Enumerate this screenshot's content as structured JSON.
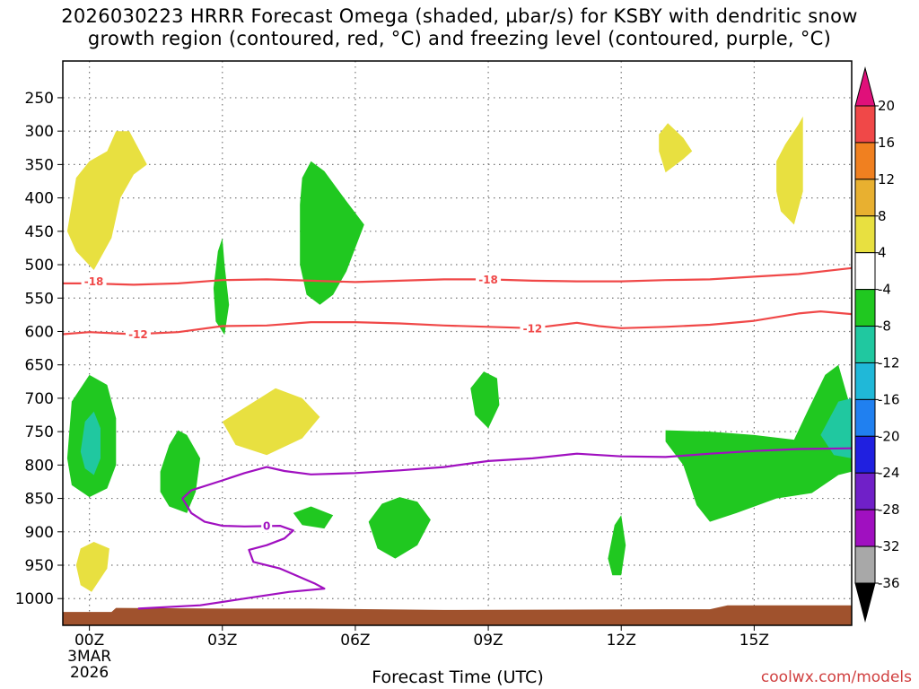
{
  "title_line1": "2026030223 HRRR Forecast Omega (shaded, µbar/s) for KSBY with dendritic snow",
  "title_line2": "growth region (contoured, red, °C) and freezing level (contoured, purple, °C)",
  "credit": "coolwx.com/models",
  "chart_data": {
    "type": "cross-section",
    "title": "2026030223 HRRR Forecast Omega (shaded, µbar/s) for KSBY with dendritic snow growth region (contoured, red, °C) and freezing level (contoured, purple, °C)",
    "xlabel": "Forecast Time (UTC)",
    "ylabel": "",
    "xlim": [
      -0.6,
      17.2
    ],
    "ylim": [
      1040,
      195
    ],
    "x_ticks": [
      {
        "value": 0,
        "label": "00Z",
        "sub1": "3MAR",
        "sub2": "2026"
      },
      {
        "value": 3,
        "label": "03Z"
      },
      {
        "value": 6,
        "label": "06Z"
      },
      {
        "value": 9,
        "label": "09Z"
      },
      {
        "value": 12,
        "label": "12Z"
      },
      {
        "value": 15,
        "label": "15Z"
      }
    ],
    "y_ticks": [
      250,
      300,
      350,
      400,
      450,
      500,
      550,
      600,
      650,
      700,
      750,
      800,
      850,
      900,
      950,
      1000
    ],
    "colorbar": {
      "labels": [
        "20",
        "16",
        "12",
        "8",
        "4",
        "-4",
        "-8",
        "-12",
        "-16",
        "-20",
        "-24",
        "-28",
        "-32",
        "-36"
      ],
      "top_arrow_color": "#e0107a",
      "bottom_arrow_color": "#000000",
      "bins": [
        {
          "from": 20,
          "to": 16,
          "color": "#f04848"
        },
        {
          "from": 16,
          "to": 12,
          "color": "#f08020"
        },
        {
          "from": 12,
          "to": 8,
          "color": "#e8b030"
        },
        {
          "from": 8,
          "to": 4,
          "color": "#e8e040"
        },
        {
          "from": 4,
          "to": -4,
          "color": "#ffffff"
        },
        {
          "from": -4,
          "to": -8,
          "color": "#20c820"
        },
        {
          "from": -8,
          "to": -12,
          "color": "#20c8a0"
        },
        {
          "from": -12,
          "to": -16,
          "color": "#20b8d8"
        },
        {
          "from": -16,
          "to": -20,
          "color": "#2080f0"
        },
        {
          "from": -20,
          "to": -24,
          "color": "#2020e0"
        },
        {
          "from": -24,
          "to": -28,
          "color": "#7020c8"
        },
        {
          "from": -28,
          "to": -32,
          "color": "#a010c0"
        },
        {
          "from": -32,
          "to": -36,
          "color": "#a8a8a8"
        }
      ]
    },
    "shaded_regions": [
      {
        "omega_range": "4 to 8",
        "color": "#e8e040",
        "points": [
          [
            -0.5,
            450
          ],
          [
            -0.3,
            370
          ],
          [
            0.0,
            345
          ],
          [
            0.4,
            330
          ],
          [
            0.6,
            300
          ],
          [
            0.9,
            300
          ],
          [
            1.3,
            350
          ],
          [
            1.0,
            365
          ],
          [
            0.7,
            400
          ],
          [
            0.5,
            460
          ],
          [
            0.1,
            508
          ],
          [
            -0.3,
            480
          ]
        ]
      },
      {
        "omega_range": "4 to 8",
        "color": "#e8e040",
        "points": [
          [
            -0.3,
            950
          ],
          [
            -0.2,
            925
          ],
          [
            0.1,
            915
          ],
          [
            0.45,
            925
          ],
          [
            0.4,
            955
          ],
          [
            0.05,
            990
          ],
          [
            -0.2,
            980
          ]
        ]
      },
      {
        "omega_range": "4 to 8",
        "color": "#e8e040",
        "points": [
          [
            3.0,
            735
          ],
          [
            3.6,
            710
          ],
          [
            4.2,
            685
          ],
          [
            4.8,
            700
          ],
          [
            5.2,
            728
          ],
          [
            4.8,
            760
          ],
          [
            4.0,
            785
          ],
          [
            3.3,
            770
          ]
        ]
      },
      {
        "omega_range": "4 to 8",
        "color": "#e8e040",
        "points": [
          [
            12.85,
            305
          ],
          [
            13.05,
            288
          ],
          [
            13.4,
            310
          ],
          [
            13.6,
            330
          ],
          [
            13.4,
            342
          ],
          [
            13.0,
            362
          ],
          [
            12.85,
            330
          ]
        ]
      },
      {
        "omega_range": "4 to 8",
        "color": "#e8e040",
        "points": [
          [
            15.5,
            345
          ],
          [
            15.7,
            320
          ],
          [
            16.0,
            290
          ],
          [
            16.1,
            278
          ],
          [
            16.1,
            330
          ],
          [
            16.1,
            390
          ],
          [
            15.9,
            440
          ],
          [
            15.6,
            420
          ],
          [
            15.5,
            390
          ]
        ]
      },
      {
        "omega_range": "-4 to -8",
        "color": "#20c820",
        "points": [
          [
            -0.5,
            790
          ],
          [
            -0.4,
            705
          ],
          [
            0.0,
            665
          ],
          [
            0.4,
            680
          ],
          [
            0.6,
            730
          ],
          [
            0.6,
            800
          ],
          [
            0.4,
            835
          ],
          [
            0.0,
            848
          ],
          [
            -0.4,
            830
          ]
        ]
      },
      {
        "omega_range": "-8 to -12",
        "color": "#20c8a0",
        "points": [
          [
            -0.2,
            780
          ],
          [
            -0.1,
            735
          ],
          [
            0.1,
            720
          ],
          [
            0.25,
            745
          ],
          [
            0.25,
            790
          ],
          [
            0.1,
            815
          ],
          [
            -0.1,
            805
          ]
        ]
      },
      {
        "omega_range": "-4 to -8",
        "color": "#20c820",
        "points": [
          [
            1.6,
            810
          ],
          [
            1.8,
            770
          ],
          [
            2.0,
            748
          ],
          [
            2.2,
            755
          ],
          [
            2.5,
            790
          ],
          [
            2.4,
            840
          ],
          [
            2.2,
            872
          ],
          [
            1.8,
            862
          ],
          [
            1.6,
            840
          ]
        ]
      },
      {
        "omega_range": "-4 to -8",
        "color": "#20c820",
        "points": [
          [
            2.8,
            535
          ],
          [
            2.9,
            480
          ],
          [
            3.0,
            460
          ],
          [
            3.05,
            500
          ],
          [
            3.15,
            560
          ],
          [
            3.05,
            605
          ],
          [
            2.85,
            585
          ]
        ]
      },
      {
        "omega_range": "-4 to -8",
        "color": "#20c820",
        "points": [
          [
            4.75,
            410
          ],
          [
            4.8,
            370
          ],
          [
            5.0,
            345
          ],
          [
            5.3,
            360
          ],
          [
            5.8,
            405
          ],
          [
            6.2,
            440
          ],
          [
            6.0,
            475
          ],
          [
            5.8,
            510
          ],
          [
            5.5,
            545
          ],
          [
            5.2,
            560
          ],
          [
            4.9,
            545
          ],
          [
            4.75,
            500
          ]
        ]
      },
      {
        "omega_range": "-4 to -8",
        "color": "#20c820",
        "points": [
          [
            4.6,
            872
          ],
          [
            5.0,
            862
          ],
          [
            5.5,
            875
          ],
          [
            5.3,
            895
          ],
          [
            4.8,
            890
          ]
        ]
      },
      {
        "omega_range": "-4 to -8",
        "color": "#20c820",
        "points": [
          [
            6.3,
            885
          ],
          [
            6.6,
            858
          ],
          [
            7.0,
            848
          ],
          [
            7.4,
            855
          ],
          [
            7.7,
            882
          ],
          [
            7.4,
            920
          ],
          [
            6.9,
            940
          ],
          [
            6.5,
            925
          ]
        ]
      },
      {
        "omega_range": "-4 to -8",
        "color": "#20c820",
        "points": [
          [
            8.6,
            685
          ],
          [
            8.9,
            660
          ],
          [
            9.2,
            670
          ],
          [
            9.25,
            710
          ],
          [
            9.0,
            745
          ],
          [
            8.7,
            725
          ]
        ]
      },
      {
        "omega_range": "-4 to -8",
        "color": "#20c820",
        "points": [
          [
            11.7,
            940
          ],
          [
            11.85,
            890
          ],
          [
            12.0,
            875
          ],
          [
            12.1,
            920
          ],
          [
            12.0,
            965
          ],
          [
            11.8,
            965
          ]
        ]
      },
      {
        "omega_range": "-4 to -8",
        "color": "#20c820",
        "points": [
          [
            13.0,
            748
          ],
          [
            13.0,
            765
          ],
          [
            13.4,
            800
          ],
          [
            13.7,
            860
          ],
          [
            14.0,
            885
          ],
          [
            14.6,
            872
          ],
          [
            15.5,
            850
          ],
          [
            16.3,
            842
          ],
          [
            16.9,
            815
          ],
          [
            17.2,
            810
          ],
          [
            17.2,
            720
          ],
          [
            16.9,
            650
          ],
          [
            16.6,
            665
          ],
          [
            16.2,
            720
          ],
          [
            15.9,
            762
          ],
          [
            15.0,
            755
          ],
          [
            14.0,
            750
          ]
        ]
      },
      {
        "omega_range": "-8 to -12",
        "color": "#20c8a0",
        "points": [
          [
            16.5,
            755
          ],
          [
            16.9,
            705
          ],
          [
            17.2,
            700
          ],
          [
            17.2,
            790
          ],
          [
            16.8,
            785
          ]
        ]
      }
    ],
    "contours": [
      {
        "name": "dgz-minus18",
        "color": "#f04848",
        "label": "-18",
        "label_at": [
          [
            0.1,
            525
          ],
          [
            9.0,
            522
          ]
        ],
        "points": [
          [
            -0.6,
            528
          ],
          [
            0.0,
            528
          ],
          [
            1.0,
            530
          ],
          [
            2.0,
            528
          ],
          [
            3.0,
            523
          ],
          [
            4.0,
            522
          ],
          [
            5.0,
            524
          ],
          [
            6.0,
            526
          ],
          [
            7.0,
            524
          ],
          [
            8.0,
            522
          ],
          [
            9.0,
            522
          ],
          [
            10.0,
            524
          ],
          [
            11.0,
            525
          ],
          [
            12.0,
            525
          ],
          [
            13.0,
            523
          ],
          [
            14.0,
            522
          ],
          [
            15.0,
            518
          ],
          [
            16.0,
            514
          ],
          [
            17.2,
            505
          ]
        ]
      },
      {
        "name": "dgz-minus12",
        "color": "#f04848",
        "label": "-12",
        "label_at": [
          [
            1.1,
            604
          ],
          [
            10.0,
            595
          ]
        ],
        "points": [
          [
            -0.6,
            604
          ],
          [
            0.0,
            601
          ],
          [
            1.0,
            604
          ],
          [
            2.0,
            601
          ],
          [
            3.0,
            592
          ],
          [
            4.0,
            591
          ],
          [
            5.0,
            586
          ],
          [
            6.0,
            586
          ],
          [
            7.0,
            588
          ],
          [
            8.0,
            591
          ],
          [
            9.0,
            593
          ],
          [
            10.0,
            595
          ],
          [
            11.0,
            587
          ],
          [
            11.5,
            592
          ],
          [
            12.0,
            595
          ],
          [
            13.0,
            593
          ],
          [
            14.0,
            590
          ],
          [
            15.0,
            584
          ],
          [
            16.0,
            573
          ],
          [
            16.5,
            570
          ],
          [
            17.2,
            574
          ]
        ]
      },
      {
        "name": "freezing-level",
        "color": "#a010c0",
        "label": "0",
        "label_at": [
          [
            4.0,
            891
          ]
        ],
        "points": [
          [
            17.2,
            775
          ],
          [
            16.0,
            776
          ],
          [
            15.0,
            779
          ],
          [
            14.0,
            783
          ],
          [
            13.0,
            788
          ],
          [
            12.0,
            787
          ],
          [
            11.5,
            785
          ],
          [
            11.0,
            783
          ],
          [
            10.0,
            790
          ],
          [
            9.0,
            794
          ],
          [
            8.0,
            803
          ],
          [
            7.0,
            808
          ],
          [
            6.0,
            812
          ],
          [
            5.0,
            814
          ],
          [
            4.4,
            809
          ],
          [
            4.0,
            803
          ],
          [
            3.5,
            812
          ],
          [
            3.0,
            823
          ],
          [
            2.3,
            838
          ],
          [
            2.1,
            850
          ],
          [
            2.3,
            872
          ],
          [
            2.6,
            885
          ],
          [
            3.0,
            891
          ],
          [
            3.5,
            892
          ],
          [
            4.3,
            891
          ],
          [
            4.6,
            898
          ],
          [
            4.4,
            910
          ],
          [
            4.0,
            920
          ],
          [
            3.6,
            927
          ],
          [
            3.7,
            945
          ],
          [
            4.3,
            955
          ],
          [
            5.1,
            978
          ],
          [
            5.3,
            985
          ],
          [
            4.5,
            990
          ],
          [
            3.5,
            1000
          ],
          [
            2.5,
            1010
          ],
          [
            1.1,
            1015
          ]
        ]
      }
    ],
    "terrain": {
      "color": "#a0522d",
      "points": [
        [
          -0.6,
          1020
        ],
        [
          0.5,
          1020
        ],
        [
          0.6,
          1014
        ],
        [
          3.0,
          1015
        ],
        [
          5.0,
          1015
        ],
        [
          8.0,
          1017
        ],
        [
          13.0,
          1016
        ],
        [
          14.0,
          1016
        ],
        [
          14.4,
          1010
        ],
        [
          17.2,
          1010
        ],
        [
          17.2,
          1040
        ],
        [
          -0.6,
          1040
        ]
      ]
    }
  }
}
